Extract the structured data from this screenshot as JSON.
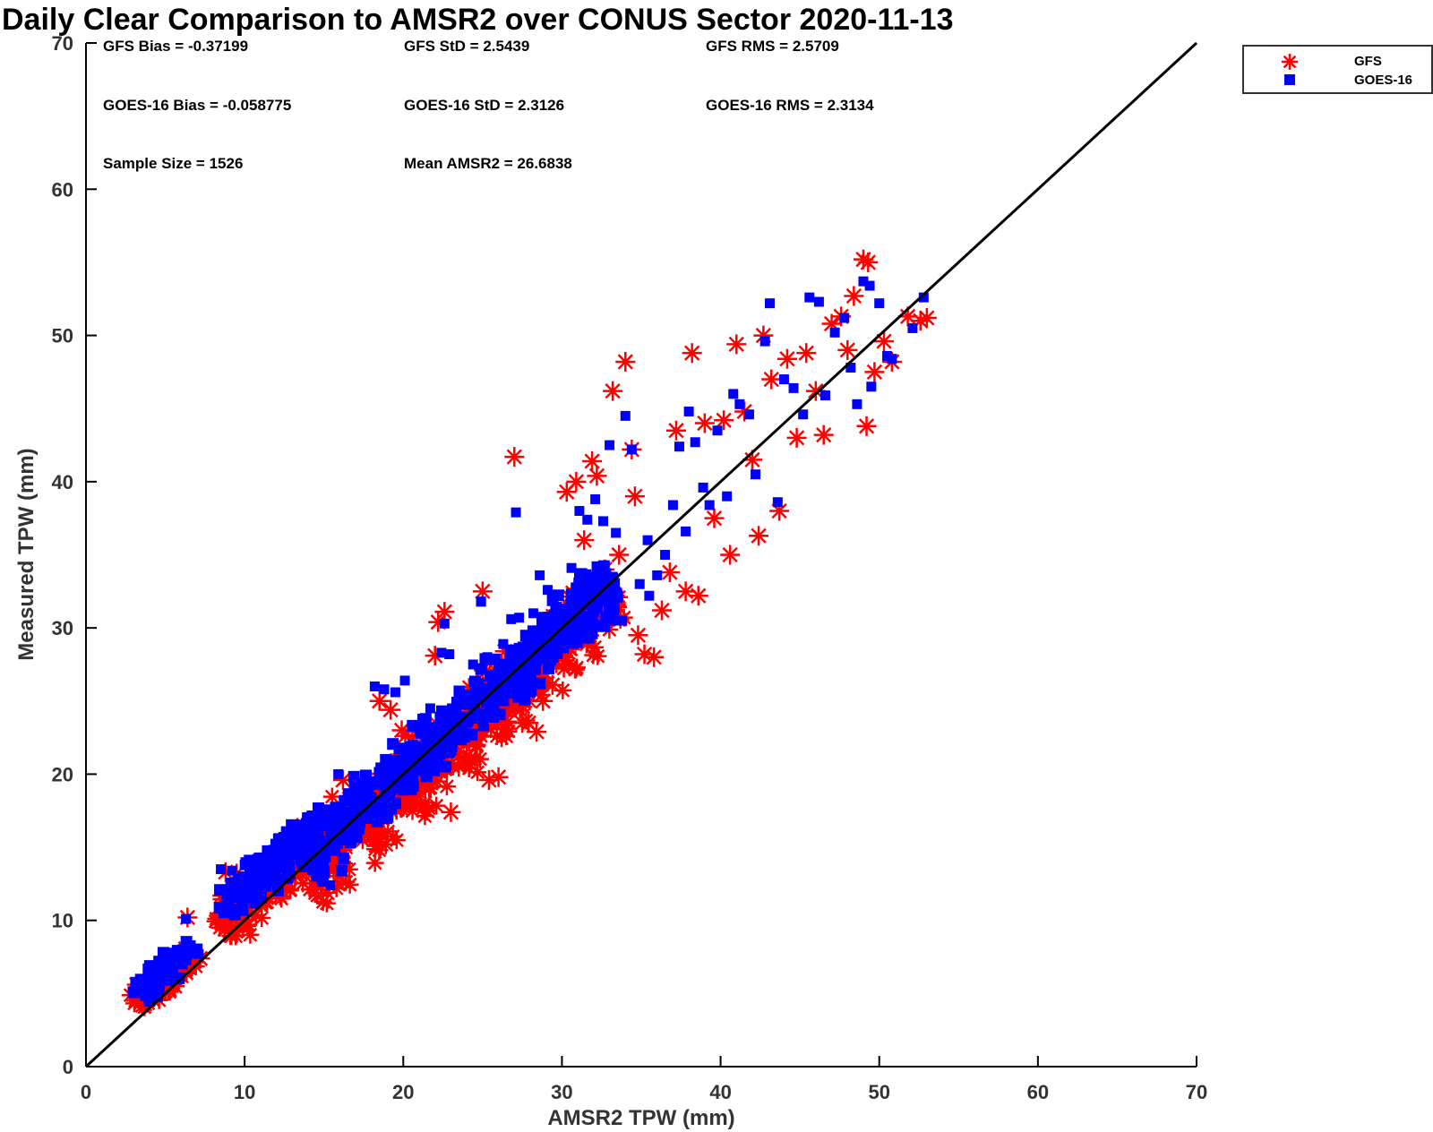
{
  "chart_data": {
    "type": "scatter",
    "title": "Daily Clear Comparison to AMSR2 over CONUS Sector 2020-11-13",
    "xlabel": "AMSR2 TPW (mm)",
    "ylabel": "Measured TPW (mm)",
    "xlim": [
      0,
      70
    ],
    "ylim": [
      0,
      70
    ],
    "xticks": [
      0,
      10,
      20,
      30,
      40,
      50,
      60,
      70
    ],
    "yticks": [
      0,
      10,
      20,
      30,
      40,
      50,
      60,
      70
    ],
    "grid": false,
    "legend_position": "top-right",
    "reference_line": {
      "name": "1:1 line",
      "x": [
        0,
        70
      ],
      "y": [
        0,
        70
      ]
    },
    "annotations": [
      "GFS Bias = -0.37199",
      "GFS StD = 2.5439",
      "GFS RMS = 2.5709",
      "GOES-16 Bias = -0.058775",
      "GOES-16 StD = 2.3126",
      "GOES-16 RMS = 2.3134",
      "Sample Size = 1526",
      "Mean AMSR2 = 26.6838"
    ],
    "series": [
      {
        "name": "GFS",
        "marker": "asterisk",
        "color": "#ff0000",
        "points": [
          [
            3.2,
            5.6
          ],
          [
            3.6,
            5.4
          ],
          [
            4.0,
            5.8
          ],
          [
            4.4,
            5.3
          ],
          [
            4.8,
            6.0
          ],
          [
            5.2,
            5.2
          ],
          [
            5.6,
            5.5
          ],
          [
            6.0,
            6.2
          ],
          [
            6.4,
            10.2
          ],
          [
            6.8,
            7.2
          ],
          [
            7.2,
            7.4
          ],
          [
            8.8,
            13.3
          ],
          [
            9.5,
            13.2
          ],
          [
            10.3,
            13.5
          ],
          [
            11.0,
            12.5
          ],
          [
            11.5,
            12.2
          ],
          [
            12.2,
            12.3
          ],
          [
            12.8,
            13.0
          ],
          [
            13.4,
            14.8
          ],
          [
            14.2,
            14.3
          ],
          [
            14.8,
            12.3
          ],
          [
            15.2,
            11.9
          ],
          [
            15.6,
            13.5
          ],
          [
            16.2,
            19.6
          ],
          [
            16.6,
            18.3
          ],
          [
            17.2,
            17.0
          ],
          [
            17.8,
            16.5
          ],
          [
            18.4,
            16.0
          ],
          [
            18.9,
            15.2
          ],
          [
            18.5,
            25.0
          ],
          [
            19.2,
            24.4
          ],
          [
            19.9,
            23.0
          ],
          [
            20.5,
            18.2
          ],
          [
            21.0,
            19.0
          ],
          [
            21.5,
            17.5
          ],
          [
            22.0,
            28.1
          ],
          [
            22.2,
            30.4
          ],
          [
            22.6,
            31.1
          ],
          [
            23.0,
            17.4
          ],
          [
            23.5,
            20.5
          ],
          [
            24.0,
            21.2
          ],
          [
            24.5,
            22.5
          ],
          [
            25.0,
            32.5
          ],
          [
            25.4,
            19.6
          ],
          [
            26.0,
            19.8
          ],
          [
            26.4,
            28.4
          ],
          [
            27.0,
            27.2
          ],
          [
            27.5,
            23.5
          ],
          [
            27.9,
            23.5
          ],
          [
            28.4,
            22.9
          ],
          [
            28.8,
            25.0
          ],
          [
            29.4,
            26.1
          ],
          [
            29.8,
            27.9
          ],
          [
            30.3,
            39.3
          ],
          [
            30.9,
            40.0
          ],
          [
            31.4,
            36.0
          ],
          [
            31.9,
            41.4
          ],
          [
            32.2,
            40.4
          ],
          [
            32.7,
            34.0
          ],
          [
            33.2,
            46.2
          ],
          [
            33.6,
            35.0
          ],
          [
            34.0,
            48.2
          ],
          [
            34.4,
            42.2
          ],
          [
            34.8,
            29.5
          ],
          [
            35.2,
            28.2
          ],
          [
            35.8,
            28.0
          ],
          [
            36.3,
            31.2
          ],
          [
            36.8,
            33.8
          ],
          [
            37.2,
            43.5
          ],
          [
            37.8,
            32.5
          ],
          [
            38.2,
            48.8
          ],
          [
            38.6,
            32.2
          ],
          [
            39.0,
            44.0
          ],
          [
            39.6,
            37.5
          ],
          [
            40.2,
            44.2
          ],
          [
            40.6,
            35.0
          ],
          [
            41.0,
            49.4
          ],
          [
            41.5,
            44.8
          ],
          [
            42.0,
            41.5
          ],
          [
            42.4,
            36.3
          ],
          [
            42.7,
            50.0
          ],
          [
            43.2,
            47.0
          ],
          [
            43.7,
            38.0
          ],
          [
            44.2,
            48.4
          ],
          [
            44.8,
            43.0
          ],
          [
            45.4,
            48.8
          ],
          [
            46.0,
            46.2
          ],
          [
            46.5,
            43.2
          ],
          [
            47.0,
            50.8
          ],
          [
            47.6,
            51.3
          ],
          [
            48.0,
            49.0
          ],
          [
            48.4,
            52.7
          ],
          [
            49.0,
            55.2
          ],
          [
            49.3,
            55.0
          ],
          [
            49.2,
            43.8
          ],
          [
            49.7,
            47.5
          ],
          [
            50.3,
            49.6
          ],
          [
            50.8,
            48.2
          ],
          [
            51.8,
            51.3
          ],
          [
            52.6,
            51.0
          ],
          [
            53.0,
            51.2
          ],
          [
            27.0,
            41.7
          ],
          [
            30.2,
            31.2
          ],
          [
            32.5,
            33.0
          ],
          [
            34.6,
            39.0
          ]
        ]
      },
      {
        "name": "GOES-16",
        "marker": "square",
        "color": "#0000ff",
        "points": [
          [
            3.1,
            5.8
          ],
          [
            3.7,
            5.6
          ],
          [
            4.2,
            6.2
          ],
          [
            4.7,
            6.8
          ],
          [
            5.1,
            7.0
          ],
          [
            5.5,
            7.6
          ],
          [
            6.0,
            7.3
          ],
          [
            6.3,
            10.1
          ],
          [
            6.7,
            8.0
          ],
          [
            7.1,
            7.7
          ],
          [
            8.5,
            13.5
          ],
          [
            9.2,
            13.4
          ],
          [
            10.0,
            13.8
          ],
          [
            10.8,
            14.2
          ],
          [
            11.4,
            14.8
          ],
          [
            12.1,
            15.6
          ],
          [
            12.6,
            16.1
          ],
          [
            13.2,
            16.0
          ],
          [
            13.8,
            15.2
          ],
          [
            14.4,
            14.5
          ],
          [
            15.0,
            13.0
          ],
          [
            15.4,
            12.4
          ],
          [
            15.9,
            20.0
          ],
          [
            16.5,
            18.7
          ],
          [
            17.1,
            17.5
          ],
          [
            17.6,
            17.0
          ],
          [
            18.2,
            26.0
          ],
          [
            18.8,
            25.8
          ],
          [
            19.5,
            25.6
          ],
          [
            20.1,
            26.4
          ],
          [
            20.6,
            22.0
          ],
          [
            21.2,
            23.8
          ],
          [
            21.7,
            24.5
          ],
          [
            22.4,
            28.3
          ],
          [
            22.9,
            28.2
          ],
          [
            23.4,
            23.8
          ],
          [
            23.9,
            22.5
          ],
          [
            24.4,
            27.5
          ],
          [
            24.9,
            31.8
          ],
          [
            25.3,
            28.0
          ],
          [
            25.8,
            26.8
          ],
          [
            26.3,
            28.9
          ],
          [
            26.8,
            30.6
          ],
          [
            27.3,
            30.7
          ],
          [
            27.7,
            26.3
          ],
          [
            28.2,
            31.0
          ],
          [
            28.6,
            33.6
          ],
          [
            29.1,
            32.6
          ],
          [
            29.6,
            31.0
          ],
          [
            30.0,
            30.2
          ],
          [
            30.6,
            34.1
          ],
          [
            31.1,
            38.0
          ],
          [
            31.6,
            37.4
          ],
          [
            32.1,
            38.8
          ],
          [
            32.6,
            37.3
          ],
          [
            33.0,
            42.5
          ],
          [
            33.4,
            36.5
          ],
          [
            34.0,
            44.5
          ],
          [
            34.4,
            42.2
          ],
          [
            34.9,
            33.0
          ],
          [
            35.4,
            36.0
          ],
          [
            36.0,
            33.6
          ],
          [
            36.5,
            35.0
          ],
          [
            37.0,
            38.4
          ],
          [
            37.4,
            42.4
          ],
          [
            38.0,
            44.8
          ],
          [
            38.4,
            42.7
          ],
          [
            38.9,
            39.6
          ],
          [
            39.3,
            38.4
          ],
          [
            39.8,
            43.5
          ],
          [
            40.4,
            39.0
          ],
          [
            40.8,
            46.0
          ],
          [
            41.2,
            45.3
          ],
          [
            41.8,
            44.6
          ],
          [
            42.2,
            40.5
          ],
          [
            42.8,
            49.6
          ],
          [
            43.1,
            52.2
          ],
          [
            43.6,
            38.6
          ],
          [
            44.0,
            47.0
          ],
          [
            44.6,
            46.4
          ],
          [
            45.2,
            44.6
          ],
          [
            45.6,
            52.6
          ],
          [
            46.2,
            52.3
          ],
          [
            46.6,
            45.9
          ],
          [
            47.2,
            50.2
          ],
          [
            47.8,
            51.2
          ],
          [
            48.2,
            47.8
          ],
          [
            48.6,
            45.3
          ],
          [
            49.0,
            53.7
          ],
          [
            49.4,
            53.4
          ],
          [
            49.5,
            46.5
          ],
          [
            50.0,
            52.2
          ],
          [
            50.5,
            48.6
          ],
          [
            50.8,
            48.4
          ],
          [
            52.1,
            50.5
          ],
          [
            52.8,
            52.6
          ],
          [
            27.1,
            37.9
          ],
          [
            24.9,
            31.8
          ],
          [
            22.6,
            30.3
          ],
          [
            30.8,
            29.5
          ],
          [
            28.9,
            29.2
          ],
          [
            33.8,
            30.5
          ],
          [
            35.5,
            32.2
          ],
          [
            37.8,
            36.6
          ],
          [
            26.0,
            27.2
          ],
          [
            29.5,
            29.9
          ],
          [
            31.9,
            32.6
          ],
          [
            20.9,
            20.8
          ],
          [
            19.6,
            20.3
          ],
          [
            23.3,
            23.6
          ],
          [
            25.6,
            26.1
          ],
          [
            18.0,
            18.4
          ],
          [
            16.8,
            17.0
          ],
          [
            14.1,
            14.6
          ],
          [
            12.9,
            13.1
          ]
        ]
      }
    ],
    "density_bands": [
      {
        "series": "GFS",
        "cx": 23.5,
        "cy": 22.5,
        "half_length": 14.0,
        "half_width": 1.9,
        "count": 520
      },
      {
        "series": "GFS",
        "cx": 12.0,
        "cy": 13.0,
        "half_length": 5.0,
        "half_width": 1.3,
        "count": 150
      },
      {
        "series": "GFS",
        "cx": 5.0,
        "cy": 6.0,
        "half_length": 2.6,
        "half_width": 0.8,
        "count": 60
      },
      {
        "series": "GOES-16",
        "cx": 23.5,
        "cy": 23.6,
        "half_length": 14.0,
        "half_width": 1.6,
        "count": 520
      },
      {
        "series": "GOES-16",
        "cx": 12.0,
        "cy": 14.0,
        "half_length": 5.0,
        "half_width": 1.2,
        "count": 150
      },
      {
        "series": "GOES-16",
        "cx": 5.0,
        "cy": 6.6,
        "half_length": 2.6,
        "half_width": 0.8,
        "count": 60
      }
    ]
  },
  "legend": {
    "items": [
      {
        "name": "GFS",
        "color": "#ff0000",
        "marker": "asterisk"
      },
      {
        "name": "GOES-16",
        "color": "#0000ff",
        "marker": "square"
      }
    ]
  }
}
